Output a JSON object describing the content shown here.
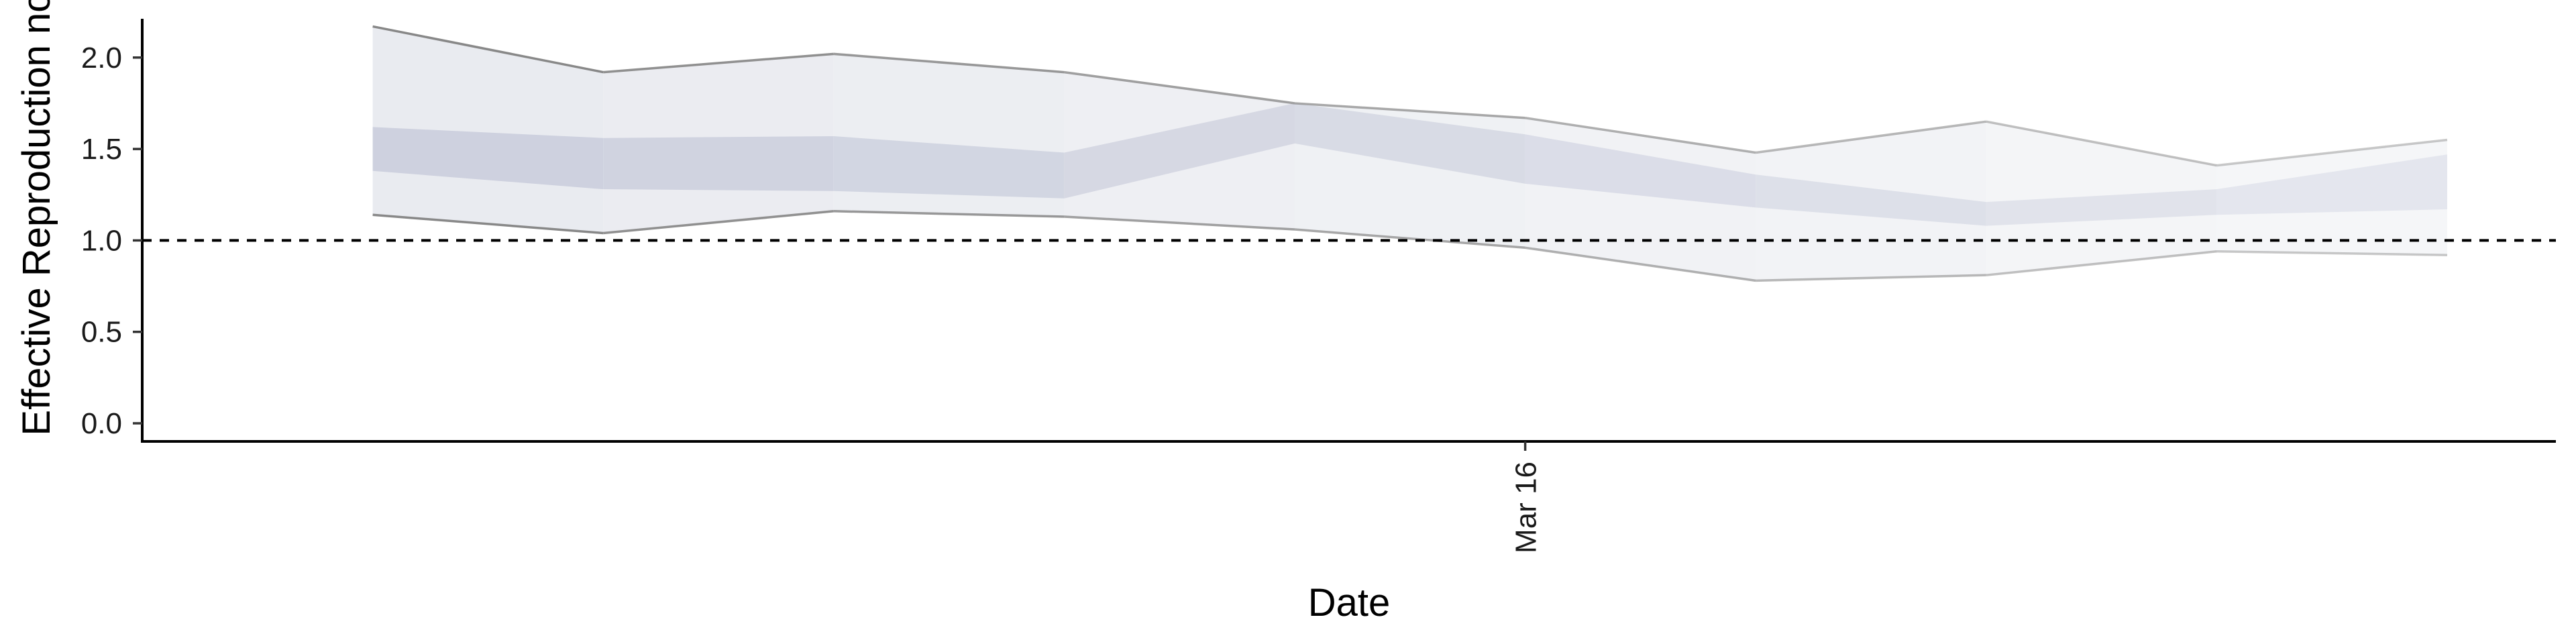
{
  "chart_data": {
    "type": "area",
    "xlabel": "Date",
    "ylabel": "Effective Reproduction no.",
    "ylim": [
      0,
      2.3
    ],
    "yticks": [
      0.0,
      0.5,
      1.0,
      1.5,
      2.0
    ],
    "ytick_labels": [
      "0.0",
      "0.5",
      "1.0",
      "1.5",
      "2.0"
    ],
    "x": [
      "2020-03-11",
      "2020-03-12",
      "2020-03-13",
      "2020-03-14",
      "2020-03-15",
      "2020-03-16",
      "2020-03-17",
      "2020-03-18",
      "2020-03-19",
      "2020-03-20"
    ],
    "xlim": [
      "2020-03-10",
      "2020-03-20"
    ],
    "xticks": [
      "2020-03-16"
    ],
    "xtick_labels": [
      "Mar 16"
    ],
    "reference_line": {
      "y": 1.0,
      "style": "dashed"
    },
    "series": [
      {
        "band": "outer",
        "lower": [
          1.14,
          1.04,
          1.16,
          1.13,
          1.06,
          0.96,
          0.78,
          0.81,
          0.94,
          0.92
        ],
        "upper": [
          2.17,
          1.92,
          2.02,
          1.92,
          1.75,
          1.67,
          1.48,
          1.65,
          1.41,
          1.55
        ]
      },
      {
        "band": "inner",
        "lower": [
          1.38,
          1.28,
          1.27,
          1.23,
          1.53,
          1.31,
          1.18,
          1.08,
          1.14,
          1.17
        ],
        "upper": [
          1.62,
          1.56,
          1.57,
          1.48,
          1.75,
          1.58,
          1.36,
          1.21,
          1.28,
          1.47
        ]
      }
    ],
    "grid": false,
    "colors": {
      "band_outer": "#e8eaef",
      "band_inner": "#c9cddc",
      "bound_line": "#888888",
      "axis": "#000000"
    }
  }
}
